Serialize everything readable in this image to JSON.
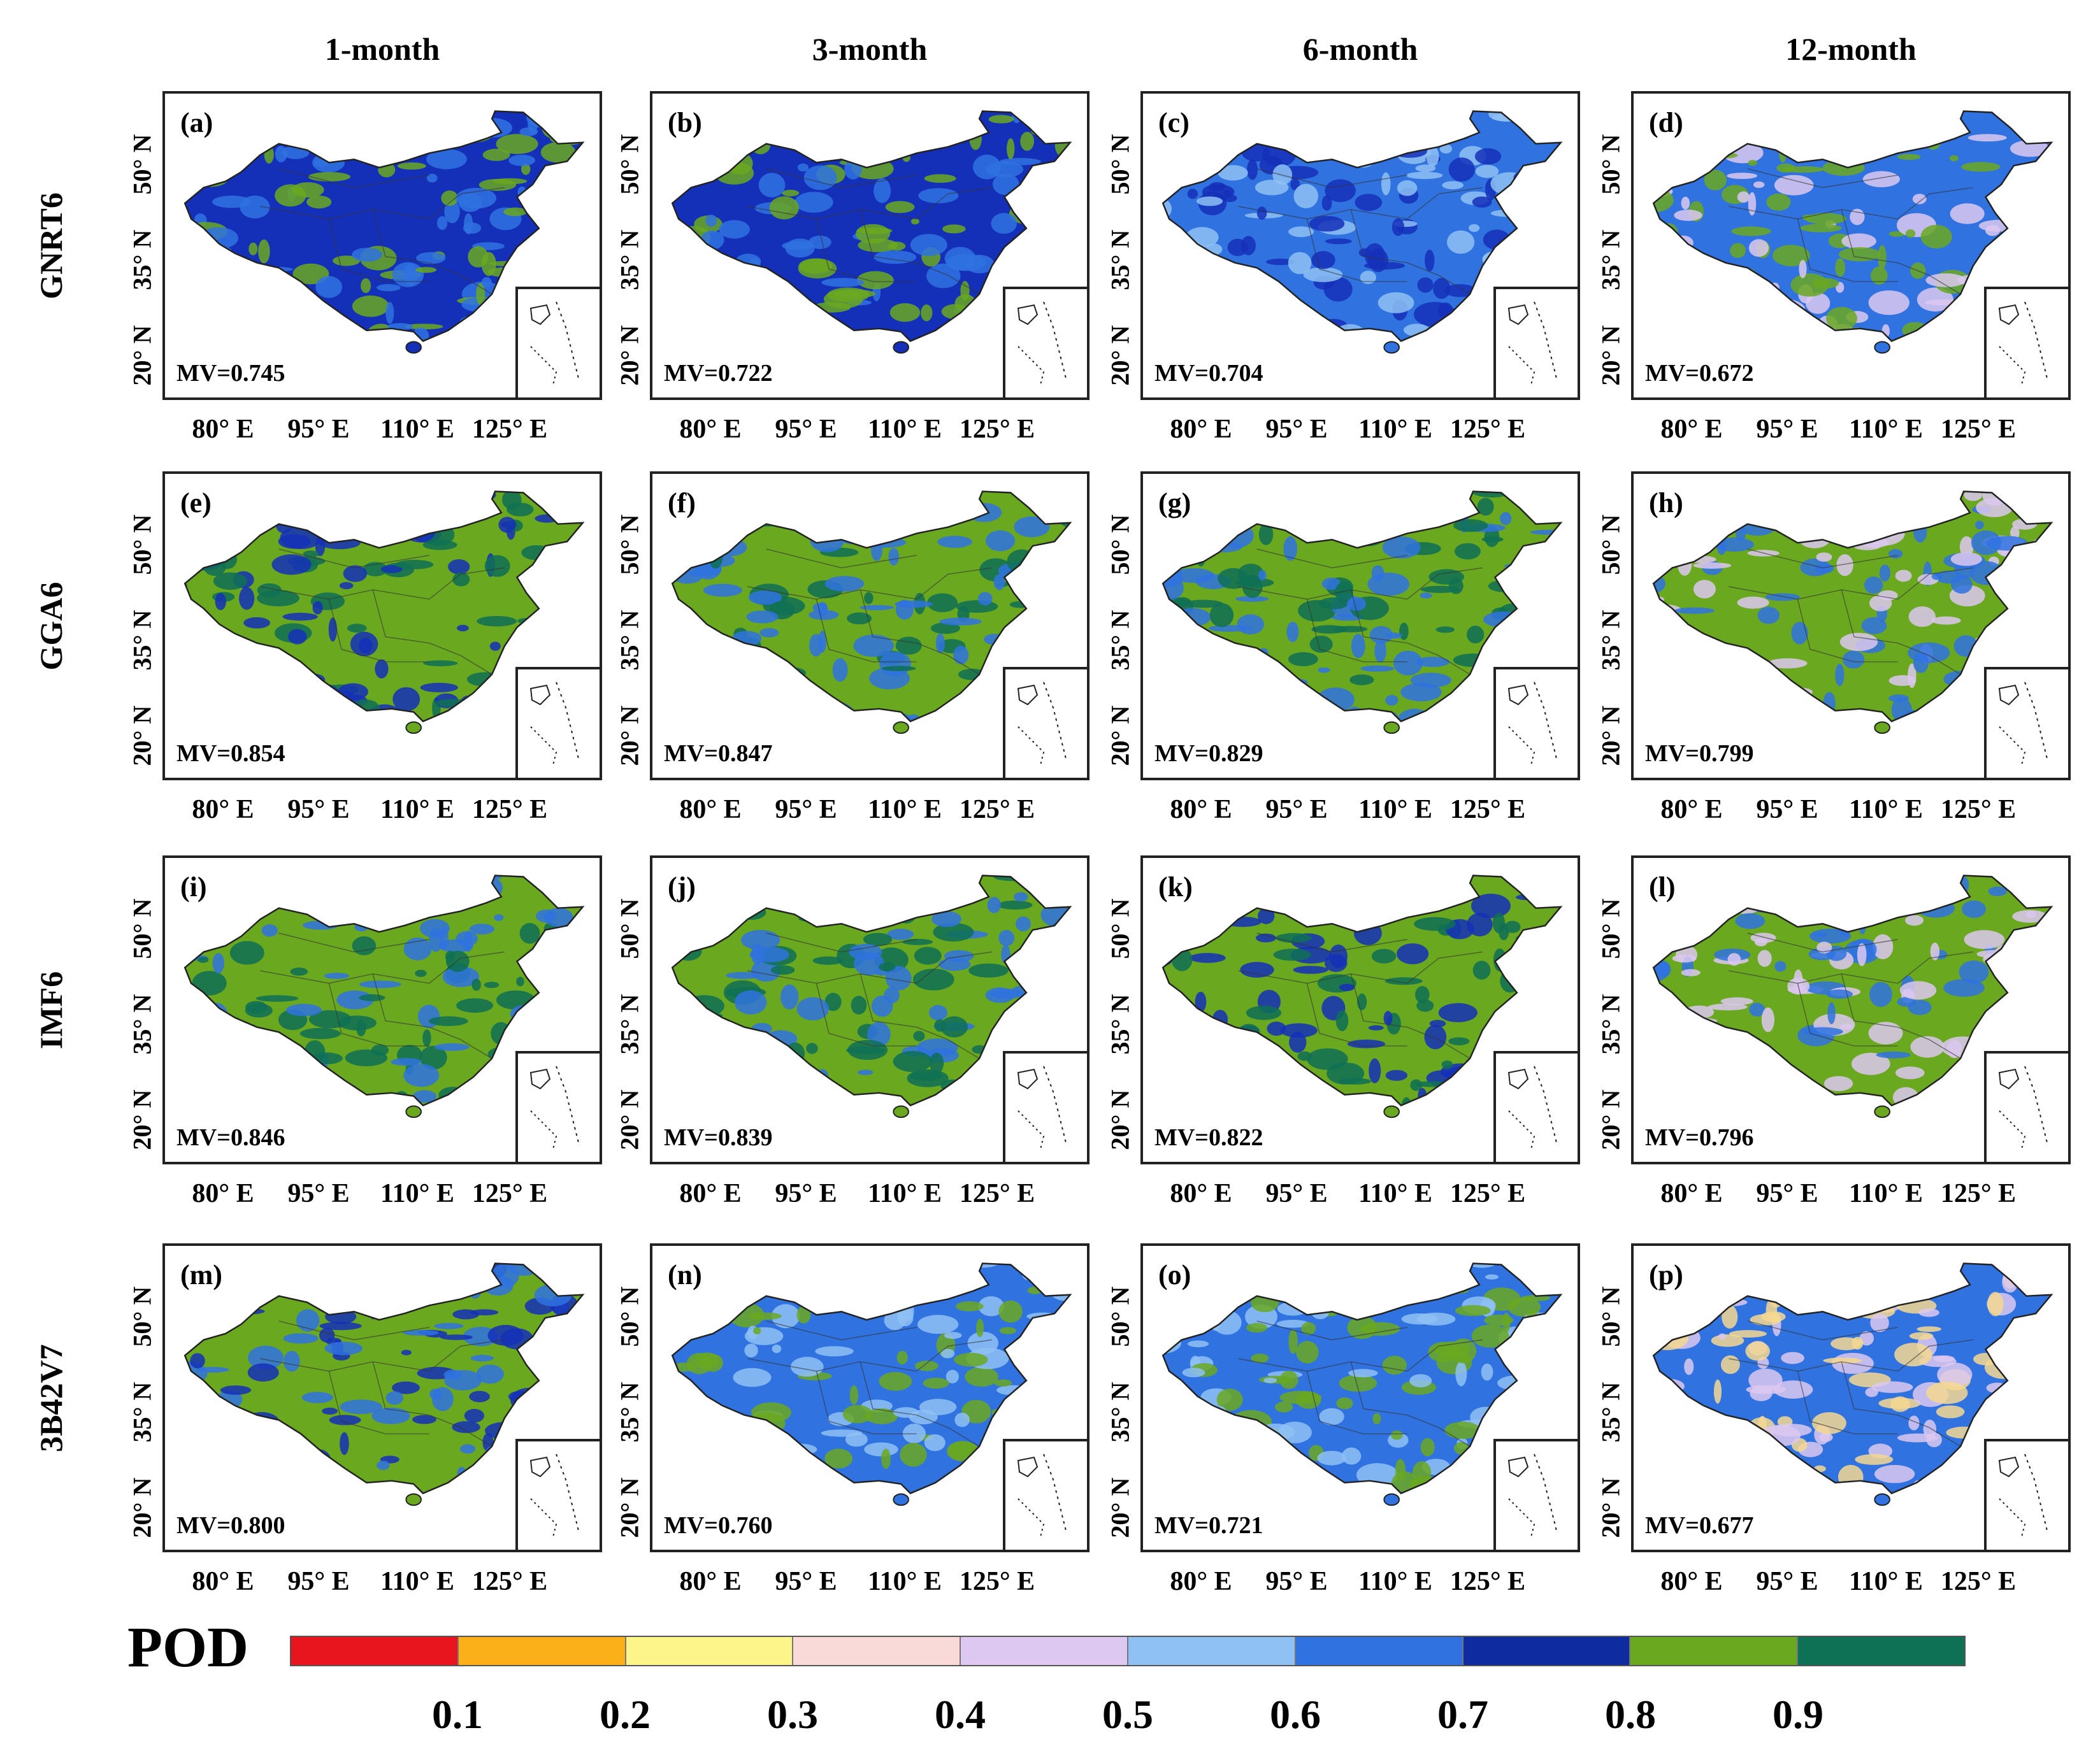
{
  "columns": [
    "1-month",
    "3-month",
    "6-month",
    "12-month"
  ],
  "rows": [
    "GNRT6",
    "GGA6",
    "IMF6",
    "3B42V7"
  ],
  "latitude_labels": [
    "20° N",
    "35° N",
    "50° N"
  ],
  "longitude_labels": [
    "80° E",
    "95° E",
    "110° E",
    "125° E"
  ],
  "panels": [
    {
      "label": "(a)",
      "mv": "MV=0.745",
      "dominant": [
        "#1530b8",
        "#6aa820",
        "#2f72e0"
      ]
    },
    {
      "label": "(b)",
      "mv": "MV=0.722",
      "dominant": [
        "#1530b8",
        "#2f72e0",
        "#6aa820"
      ]
    },
    {
      "label": "(c)",
      "mv": "MV=0.704",
      "dominant": [
        "#2f72e0",
        "#1530b8",
        "#8fc1f5"
      ]
    },
    {
      "label": "(d)",
      "mv": "MV=0.672",
      "dominant": [
        "#2f72e0",
        "#dcc8f0",
        "#6aa820"
      ]
    },
    {
      "label": "(e)",
      "mv": "MV=0.854",
      "dominant": [
        "#6aa820",
        "#0e7055",
        "#1530b8"
      ]
    },
    {
      "label": "(f)",
      "mv": "MV=0.847",
      "dominant": [
        "#6aa820",
        "#0e7055",
        "#2f72e0"
      ]
    },
    {
      "label": "(g)",
      "mv": "MV=0.829",
      "dominant": [
        "#6aa820",
        "#2f72e0",
        "#0e7055"
      ]
    },
    {
      "label": "(h)",
      "mv": "MV=0.799",
      "dominant": [
        "#6aa820",
        "#2f72e0",
        "#dcc8f0"
      ]
    },
    {
      "label": "(i)",
      "mv": "MV=0.846",
      "dominant": [
        "#6aa820",
        "#0e7055",
        "#2f72e0"
      ]
    },
    {
      "label": "(j)",
      "mv": "MV=0.839",
      "dominant": [
        "#6aa820",
        "#0e7055",
        "#2f72e0"
      ]
    },
    {
      "label": "(k)",
      "mv": "MV=0.822",
      "dominant": [
        "#6aa820",
        "#1530b8",
        "#0e7055"
      ]
    },
    {
      "label": "(l)",
      "mv": "MV=0.796",
      "dominant": [
        "#6aa820",
        "#2f72e0",
        "#dcc8f0"
      ]
    },
    {
      "label": "(m)",
      "mv": "MV=0.800",
      "dominant": [
        "#6aa820",
        "#2f72e0",
        "#1530b8"
      ]
    },
    {
      "label": "(n)",
      "mv": "MV=0.760",
      "dominant": [
        "#2f72e0",
        "#6aa820",
        "#8fc1f5"
      ]
    },
    {
      "label": "(o)",
      "mv": "MV=0.721",
      "dominant": [
        "#2f72e0",
        "#8fc1f5",
        "#6aa820"
      ]
    },
    {
      "label": "(p)",
      "mv": "MV=0.677",
      "dominant": [
        "#2f72e0",
        "#f5d890",
        "#dcc8f0"
      ]
    }
  ],
  "legend": {
    "title": "POD",
    "colors": [
      "#e8141e",
      "#fbb01a",
      "#fdf58a",
      "#fad9d9",
      "#dcc8f0",
      "#8fc1f5",
      "#2f72e0",
      "#0e2ca0",
      "#6aa820",
      "#0e7055"
    ],
    "ticks": [
      "0.1",
      "0.2",
      "0.3",
      "0.4",
      "0.5",
      "0.6",
      "0.7",
      "0.8",
      "0.9"
    ]
  }
}
